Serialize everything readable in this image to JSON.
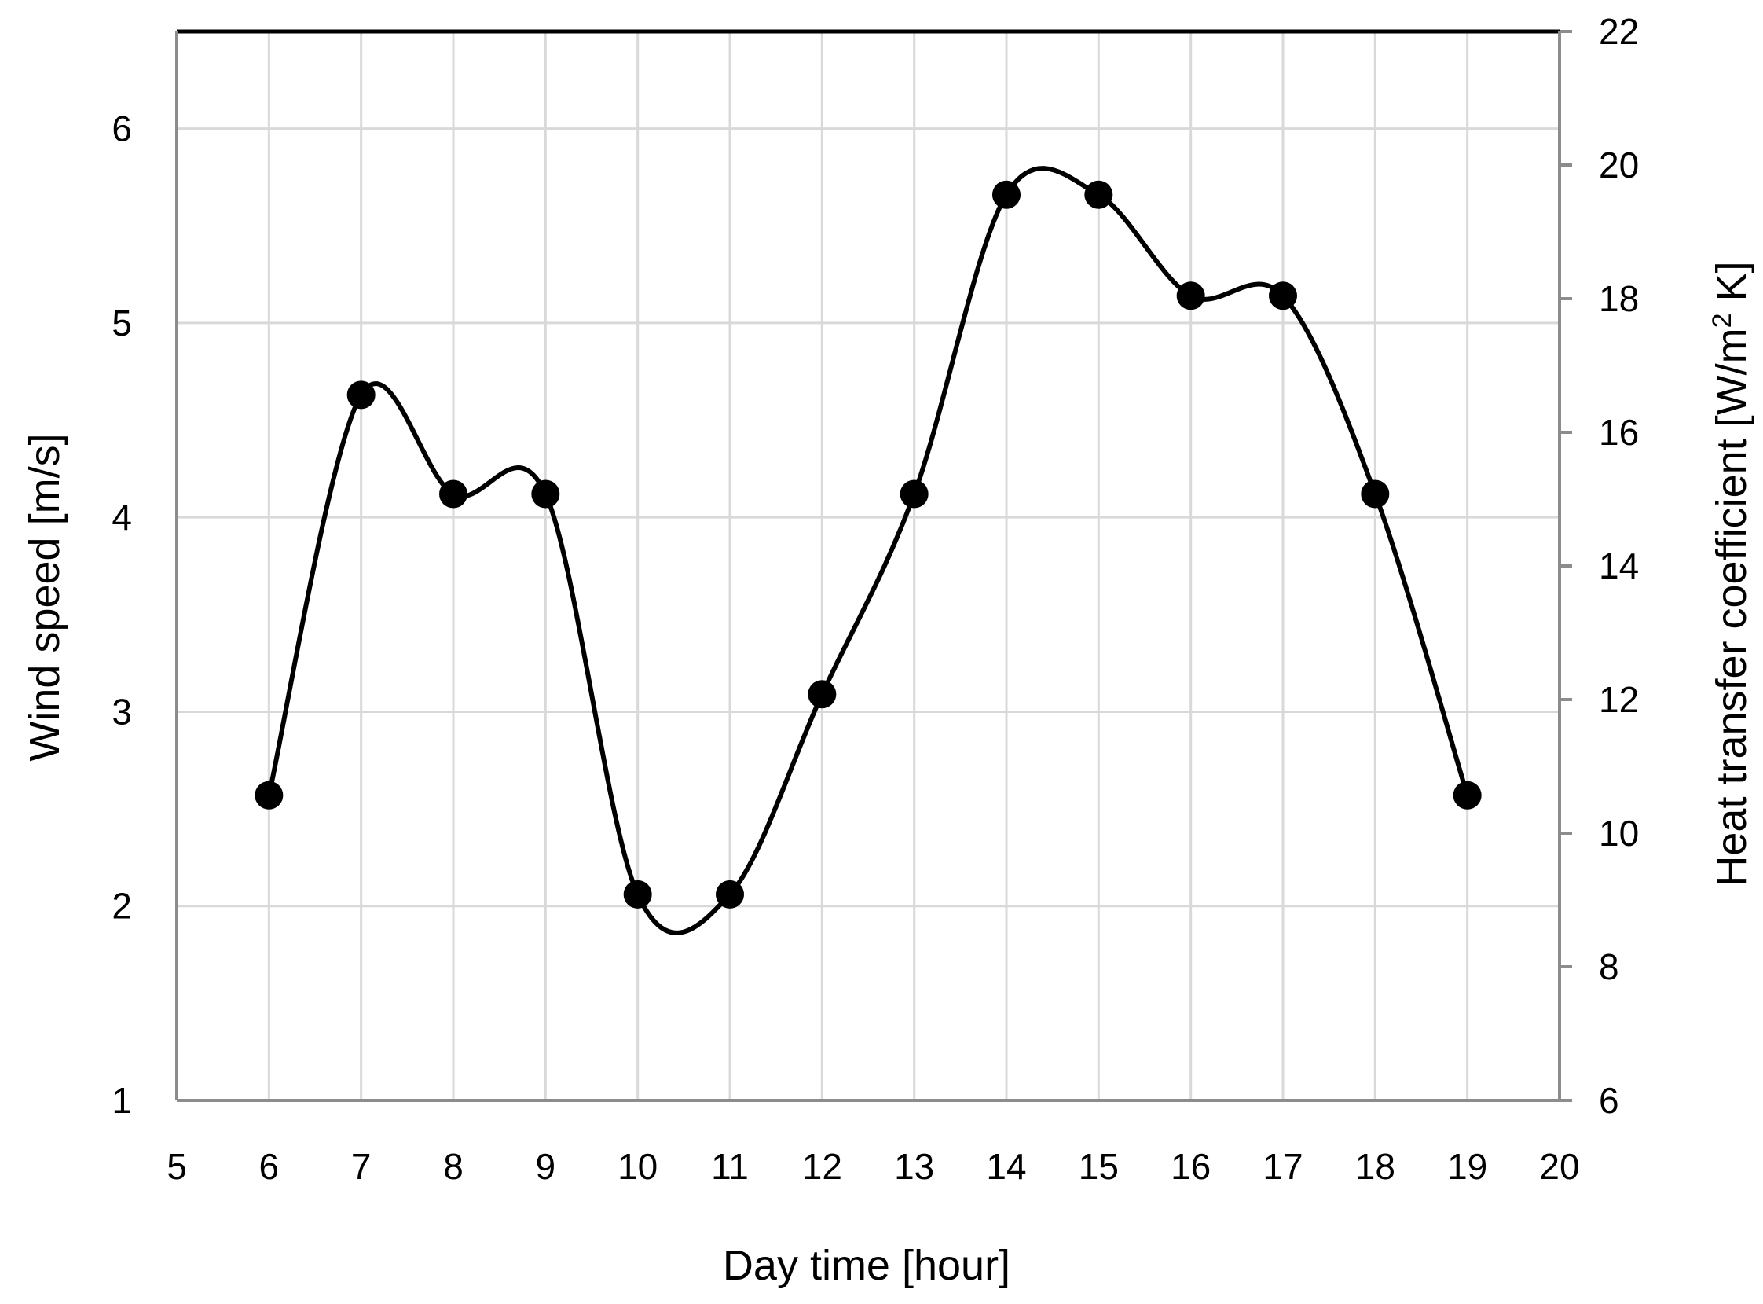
{
  "chart_data": {
    "type": "line",
    "title": "",
    "xlabel": "Day time [hour]",
    "ylabel": "Wind speed [m/s]",
    "y2label_main": "Heat transfer coefficient [W/m",
    "y2label_sup": "2",
    "y2label_end": " K]",
    "xlim": [
      5,
      20
    ],
    "ylim": [
      1,
      6.5
    ],
    "y2lim": [
      6,
      22
    ],
    "x_ticks": [
      5,
      6,
      7,
      8,
      9,
      10,
      11,
      12,
      13,
      14,
      15,
      16,
      17,
      18,
      19,
      20
    ],
    "y_ticks": [
      1,
      2,
      3,
      4,
      5,
      6
    ],
    "y2_ticks": [
      6,
      8,
      10,
      12,
      14,
      16,
      18,
      20,
      22
    ],
    "grid": true,
    "line_style": "smoothed",
    "series": [
      {
        "color": "#000000",
        "marker": "circle",
        "x": [
          6,
          7,
          8,
          9,
          10,
          11,
          12,
          13,
          14,
          15,
          16,
          17,
          18,
          19
        ],
        "values": [
          2.57,
          4.63,
          4.12,
          4.12,
          2.06,
          2.06,
          3.09,
          4.12,
          5.66,
          5.66,
          5.14,
          5.14,
          4.12,
          2.57
        ]
      }
    ]
  }
}
